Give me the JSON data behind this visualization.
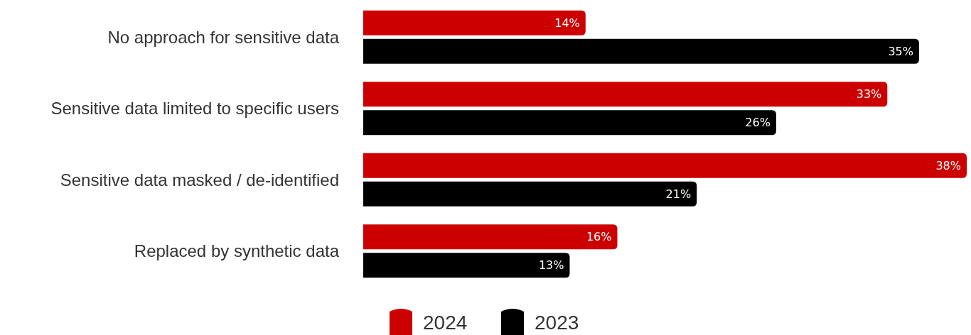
{
  "chart_data": {
    "type": "bar",
    "orientation": "horizontal",
    "categories": [
      "No approach for sensitive data",
      "Sensitive data limited to specific users",
      "Sensitive data masked / de-identified",
      "Replaced by synthetic data"
    ],
    "series": [
      {
        "name": "2024",
        "color": "#cc0000",
        "values": [
          14,
          33,
          38,
          16
        ],
        "value_labels": [
          "14%",
          "33%",
          "38%",
          "16%"
        ]
      },
      {
        "name": "2023",
        "color": "#000000",
        "values": [
          35,
          26,
          21,
          13
        ],
        "value_labels": [
          "35%",
          "26%",
          "21%",
          "13%"
        ]
      }
    ],
    "legend": "bottom"
  }
}
